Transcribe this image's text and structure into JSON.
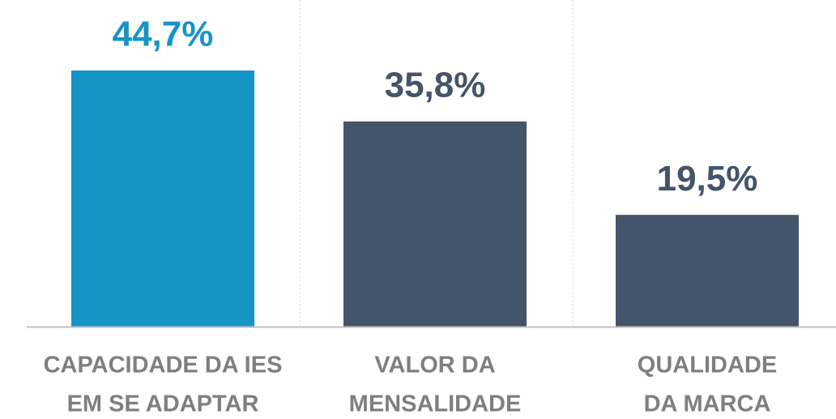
{
  "chart_data": {
    "type": "bar",
    "categories": [
      [
        "CAPACIDADE DA IES",
        "EM SE ADAPTAR"
      ],
      [
        "VALOR DA",
        "MENSALIDADE"
      ],
      [
        "QUALIDADE",
        "DA MARCA"
      ]
    ],
    "values": [
      44.7,
      35.8,
      19.5
    ],
    "value_labels": [
      "44,7%",
      "35,8%",
      "19,5%"
    ],
    "colors": [
      "#1594c6",
      "#44546a",
      "#44546a"
    ]
  }
}
